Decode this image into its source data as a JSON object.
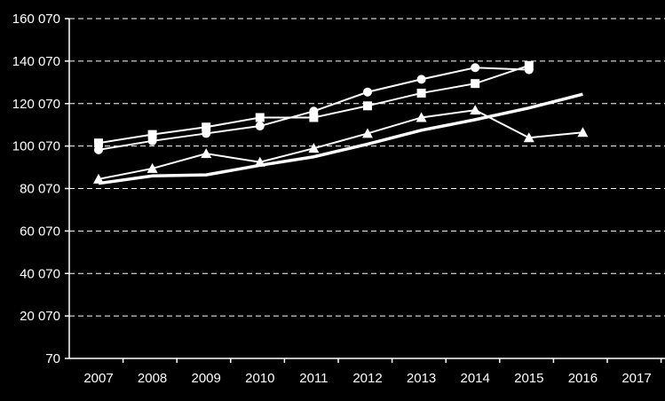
{
  "chart_data": {
    "type": "line",
    "title": "",
    "xlabel": "",
    "ylabel": "",
    "x": [
      "2007",
      "2008",
      "2009",
      "2010",
      "2011",
      "2012",
      "2013",
      "2014",
      "2015",
      "2016",
      "2017"
    ],
    "y_ticks": [
      "70",
      "20 070",
      "40 070",
      "60 070",
      "80 070",
      "100 070",
      "120 070",
      "140 070",
      "160 070"
    ],
    "ylim": [
      70,
      160070
    ],
    "grid": true,
    "series": [
      {
        "marker": "circle",
        "color": "#ffffff",
        "values": [
          98300,
          102500,
          106000,
          109500,
          116500,
          125500,
          131500,
          137000,
          136000,
          null,
          null
        ]
      },
      {
        "marker": "square",
        "color": "#ffffff",
        "values": [
          101500,
          105500,
          109000,
          113500,
          113500,
          119000,
          125000,
          129500,
          138000,
          null,
          null
        ]
      },
      {
        "marker": "triangle",
        "color": "#ffffff",
        "values": [
          84500,
          89500,
          96500,
          92500,
          99000,
          106000,
          113500,
          117000,
          104000,
          106500,
          null
        ]
      },
      {
        "marker": "none",
        "color": "#ffffff",
        "values": [
          82500,
          86000,
          86500,
          91000,
          95000,
          101000,
          107500,
          112500,
          118000,
          124500,
          null
        ]
      }
    ]
  }
}
